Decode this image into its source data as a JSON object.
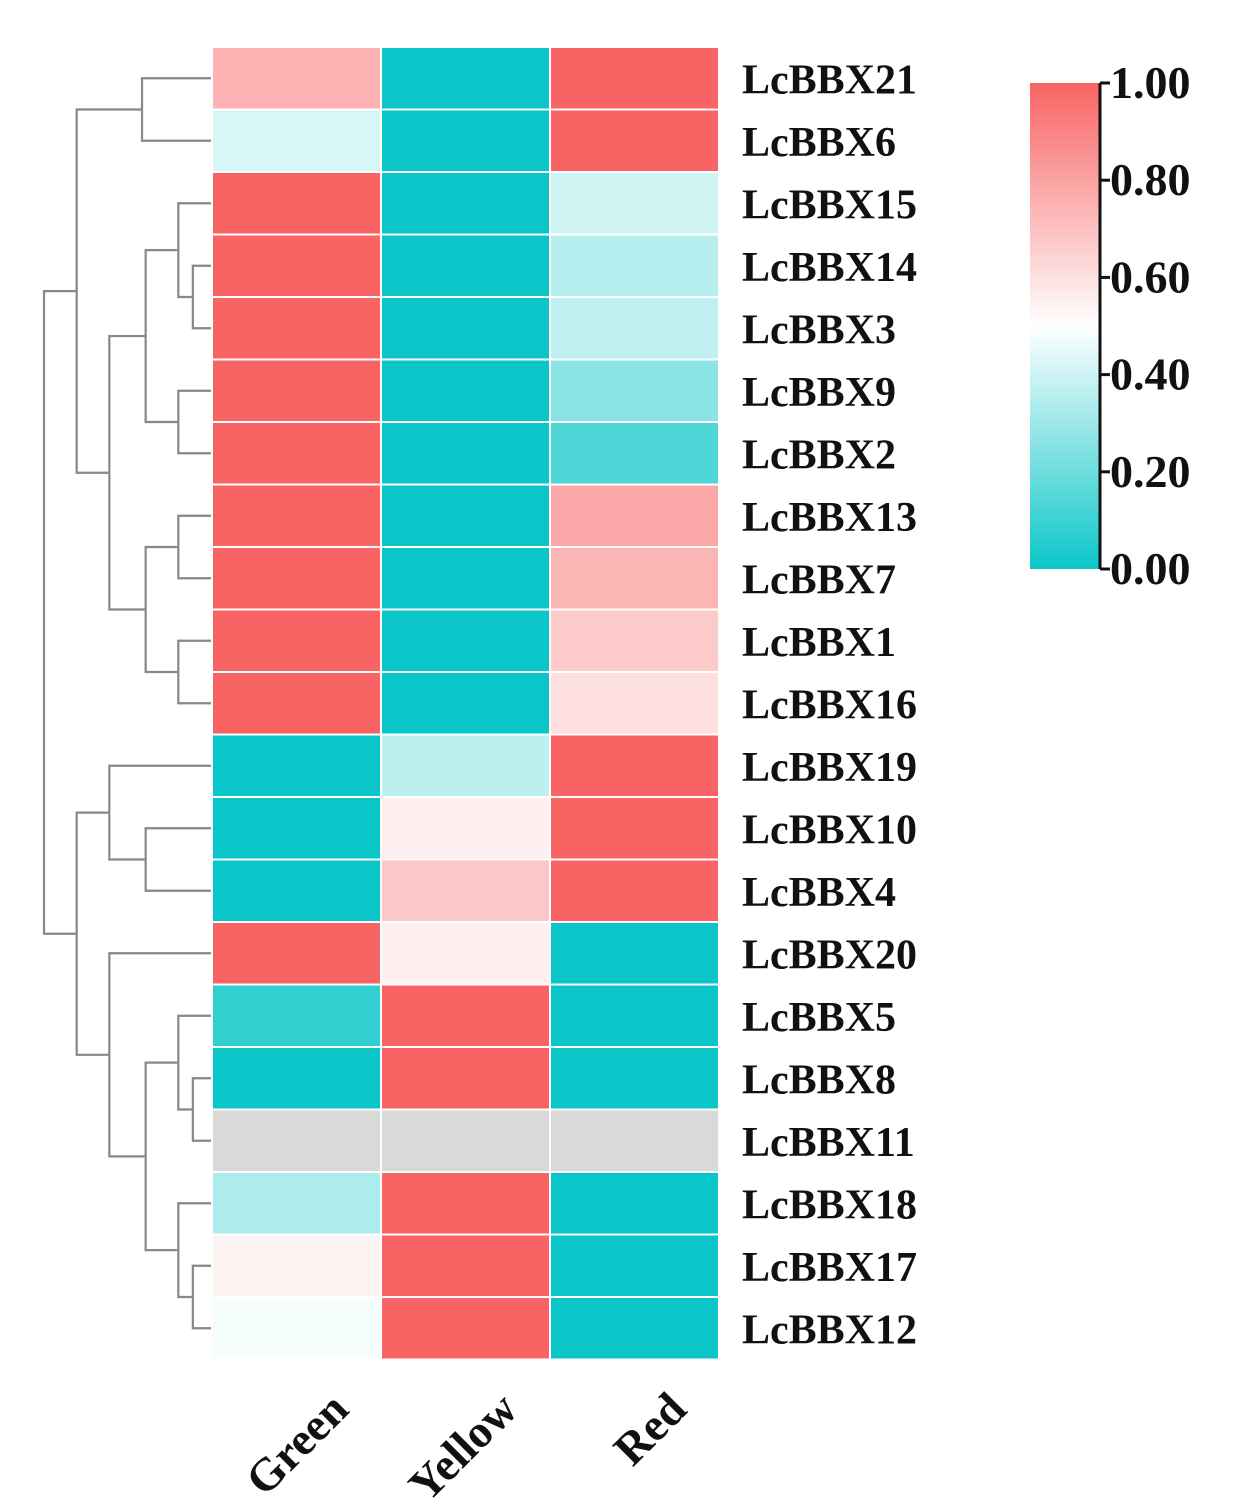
{
  "chart_data": {
    "type": "heatmap",
    "title": "",
    "columns": [
      "Green",
      "Yellow",
      "Red"
    ],
    "rows": [
      "LcBBX21",
      "LcBBX6",
      "LcBBX15",
      "LcBBX14",
      "LcBBX3",
      "LcBBX9",
      "LcBBX2",
      "LcBBX13",
      "LcBBX7",
      "LcBBX1",
      "LcBBX16",
      "LcBBX19",
      "LcBBX10",
      "LcBBX4",
      "LcBBX20",
      "LcBBX5",
      "LcBBX8",
      "LcBBX11",
      "LcBBX18",
      "LcBBX17",
      "LcBBX12"
    ],
    "values": [
      [
        0.75,
        0.0,
        1.0
      ],
      [
        0.42,
        0.0,
        1.0
      ],
      [
        1.0,
        0.0,
        0.4
      ],
      [
        1.0,
        0.0,
        0.35
      ],
      [
        1.0,
        0.0,
        0.37
      ],
      [
        1.0,
        0.0,
        0.26
      ],
      [
        1.0,
        0.0,
        0.14
      ],
      [
        1.0,
        0.0,
        0.78
      ],
      [
        1.0,
        0.0,
        0.74
      ],
      [
        1.0,
        0.0,
        0.67
      ],
      [
        1.0,
        0.0,
        0.6
      ],
      [
        0.0,
        0.36,
        1.0
      ],
      [
        0.0,
        0.55,
        1.0
      ],
      [
        0.0,
        0.68,
        1.0
      ],
      [
        1.0,
        0.55,
        0.0
      ],
      [
        0.08,
        1.0,
        0.0
      ],
      [
        0.0,
        1.0,
        0.0
      ],
      [
        null,
        null,
        null
      ],
      [
        0.33,
        1.0,
        0.0
      ],
      [
        0.54,
        1.0,
        0.0
      ],
      [
        0.48,
        1.0,
        0.0
      ]
    ],
    "missing_color": "#d9d9d9",
    "colorbar": {
      "min": 0.0,
      "max": 1.0,
      "ticks": [
        "1.00",
        "0.80",
        "0.60",
        "0.40",
        "0.20",
        "0.00"
      ],
      "tick_values": [
        1.0,
        0.8,
        0.6,
        0.4,
        0.2,
        0.0
      ],
      "colors": {
        "low": "#0bc6c8",
        "mid": "#ffffff",
        "high": "#f86464"
      },
      "placement": "top-right"
    },
    "dendrogram": {
      "side": "left",
      "color": "#888888",
      "merges": [
        {
          "a": 0,
          "b": 1,
          "h": 0.19
        },
        {
          "a": 3,
          "b": 4,
          "h": 0.05
        },
        {
          "a": 2,
          "b": 3.5,
          "h": 0.09
        },
        {
          "a": 5,
          "b": 6,
          "h": 0.09
        },
        {
          "a": 2.75,
          "b": 5.5,
          "h": 0.18
        },
        {
          "a": 7,
          "b": 8,
          "h": 0.09
        },
        {
          "a": 9,
          "b": 10,
          "h": 0.09
        },
        {
          "a": 7.5,
          "b": 9.5,
          "h": 0.18
        },
        {
          "a": 4.125,
          "b": 8.5,
          "h": 0.28
        },
        {
          "a": 0.5,
          "b": 6.3125,
          "h": 0.37
        },
        {
          "a": 12,
          "b": 13,
          "h": 0.18
        },
        {
          "a": 11,
          "b": 12.5,
          "h": 0.28
        },
        {
          "a": 16,
          "b": 17,
          "h": 0.05
        },
        {
          "a": 15,
          "b": 16.5,
          "h": 0.09
        },
        {
          "a": 19,
          "b": 20,
          "h": 0.05
        },
        {
          "a": 18,
          "b": 19.5,
          "h": 0.09
        },
        {
          "a": 15.75,
          "b": 18.75,
          "h": 0.18
        },
        {
          "a": 14,
          "b": 17.25,
          "h": 0.28
        },
        {
          "a": 11.75,
          "b": 15.625,
          "h": 0.37
        },
        {
          "a": 3.40625,
          "b": 13.6875,
          "h": 0.46
        }
      ]
    }
  }
}
